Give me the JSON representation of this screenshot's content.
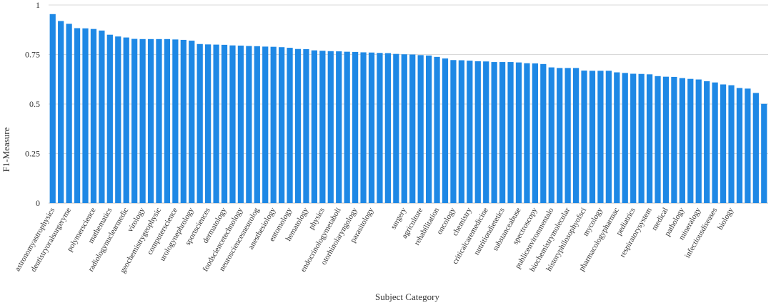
{
  "chart_data": {
    "type": "bar",
    "xlabel": "Subject Category",
    "ylabel": "F1-Measure",
    "ylim": [
      0,
      1
    ],
    "yticks": [
      0,
      0.25,
      0.5,
      0.75,
      1
    ],
    "ytick_labels": [
      "0",
      "0.25",
      "0.5",
      "0.75",
      "1"
    ],
    "grid": "horizontal",
    "bar_color": "#1e88e5",
    "series": [
      {
        "values": [
          0.954,
          0.919,
          0.905,
          0.883,
          0.882,
          0.879,
          0.871,
          0.85,
          0.841,
          0.836,
          0.829,
          0.828,
          0.828,
          0.828,
          0.828,
          0.826,
          0.824,
          0.82,
          0.803,
          0.801,
          0.8,
          0.799,
          0.796,
          0.795,
          0.793,
          0.792,
          0.79,
          0.789,
          0.787,
          0.784,
          0.778,
          0.777,
          0.771,
          0.769,
          0.767,
          0.766,
          0.764,
          0.763,
          0.761,
          0.76,
          0.758,
          0.757,
          0.753,
          0.751,
          0.75,
          0.747,
          0.745,
          0.738,
          0.73,
          0.722,
          0.721,
          0.719,
          0.716,
          0.715,
          0.712,
          0.712,
          0.712,
          0.71,
          0.706,
          0.705,
          0.702,
          0.685,
          0.682,
          0.682,
          0.682,
          0.669,
          0.668,
          0.668,
          0.668,
          0.66,
          0.657,
          0.653,
          0.652,
          0.65,
          0.641,
          0.638,
          0.637,
          0.631,
          0.627,
          0.624,
          0.615,
          0.609,
          0.599,
          0.595,
          0.581,
          0.578,
          0.556,
          0.501
        ]
      }
    ],
    "category_labels": [
      {
        "index": 0,
        "label": "astronomyastrophysics"
      },
      {
        "index": 2,
        "label": "dentistryoralsurgeryme"
      },
      {
        "index": 5,
        "label": "polymerscience"
      },
      {
        "index": 7,
        "label": "mathematics"
      },
      {
        "index": 9,
        "label": "radiologynuclearmedic"
      },
      {
        "index": 11,
        "label": "virology"
      },
      {
        "index": 13,
        "label": "geochemistrygeophysic"
      },
      {
        "index": 15,
        "label": "computerscience"
      },
      {
        "index": 17,
        "label": "urologynephrology"
      },
      {
        "index": 19,
        "label": "sportsciences"
      },
      {
        "index": 21,
        "label": "dermatology"
      },
      {
        "index": 23,
        "label": "foodsciencetechnology"
      },
      {
        "index": 25,
        "label": "neurosciencesneurolog"
      },
      {
        "index": 27,
        "label": "anesthesiology"
      },
      {
        "index": 29,
        "label": "entomology"
      },
      {
        "index": 31,
        "label": "hematology"
      },
      {
        "index": 33,
        "label": "physics"
      },
      {
        "index": 35,
        "label": "endocrinologymetaboli"
      },
      {
        "index": 37,
        "label": "otorhinolaryngology"
      },
      {
        "index": 39,
        "label": "parasitology"
      },
      {
        "index": 43,
        "label": "surgery"
      },
      {
        "index": 45,
        "label": "agriculture"
      },
      {
        "index": 47,
        "label": "rehabilitation"
      },
      {
        "index": 49,
        "label": "oncology"
      },
      {
        "index": 51,
        "label": "chemistry"
      },
      {
        "index": 53,
        "label": "criticalcaremedicine"
      },
      {
        "index": 55,
        "label": "nutritiondietetics"
      },
      {
        "index": 57,
        "label": "substanceabuse"
      },
      {
        "index": 59,
        "label": "spectroscopy"
      },
      {
        "index": 61,
        "label": "publicenvironmentalo"
      },
      {
        "index": 63,
        "label": "biochemistrymolecular"
      },
      {
        "index": 65,
        "label": "historyphilosophyofsci"
      },
      {
        "index": 67,
        "label": "mycology"
      },
      {
        "index": 69,
        "label": "pharmacologypharmac"
      },
      {
        "index": 71,
        "label": "pediatrics"
      },
      {
        "index": 73,
        "label": "respiratorysystem"
      },
      {
        "index": 75,
        "label": "medical"
      },
      {
        "index": 77,
        "label": "pathology"
      },
      {
        "index": 79,
        "label": "mineralogy"
      },
      {
        "index": 81,
        "label": "infectiousdiseases"
      },
      {
        "index": 83,
        "label": "biology"
      }
    ]
  }
}
